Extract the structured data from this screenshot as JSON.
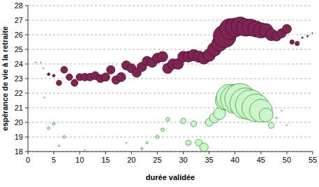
{
  "chart_data": {
    "type": "scatter",
    "x_label": "durée validée",
    "y_label": "espérance de vie à la retraite",
    "xlim": [
      0,
      55
    ],
    "ylim": [
      18,
      28
    ],
    "xticks": [
      0,
      5,
      10,
      15,
      20,
      25,
      30,
      35,
      40,
      45,
      50,
      55
    ],
    "yticks": [
      18,
      19,
      20,
      21,
      22,
      23,
      24,
      25,
      26,
      27,
      28
    ],
    "grid": true,
    "marker": "bubble",
    "series": [
      {
        "color": "#7e2553",
        "x": [
          4,
          5,
          6,
          7,
          8,
          9,
          10,
          11,
          12,
          13,
          14,
          15,
          16,
          17,
          18,
          19,
          20,
          21,
          22,
          23,
          24,
          25,
          26,
          27,
          28,
          29,
          30,
          31,
          32,
          33,
          34,
          35,
          36,
          37,
          38,
          39,
          40,
          41,
          42,
          43,
          44,
          45,
          46,
          47,
          48,
          49,
          50,
          51,
          52,
          53,
          54,
          55
        ],
        "values": [
          23.3,
          23.2,
          22.7,
          23.6,
          23.1,
          22.7,
          23.1,
          23.1,
          23.1,
          23.2,
          23,
          23.1,
          23.6,
          22.9,
          23.1,
          23.9,
          23.7,
          23.4,
          23.8,
          24.2,
          24.1,
          24.4,
          24.5,
          23.7,
          24,
          24,
          24.5,
          24.5,
          24.6,
          24.5,
          24.4,
          24.6,
          25,
          25.4,
          25.9,
          26.4,
          26.5,
          26.6,
          26.5,
          26.5,
          26.4,
          26.3,
          26.3,
          26,
          25.9,
          26.1,
          26.4,
          25.5,
          25.4,
          25.8,
          25.9,
          26.1
        ],
        "size": [
          0.3,
          0.3,
          1.2,
          2,
          1.8,
          2,
          2.2,
          2.5,
          2.5,
          2.8,
          2.8,
          3,
          3,
          3,
          3.5,
          3.5,
          3.5,
          3.5,
          3.8,
          3.8,
          4,
          4.2,
          4.5,
          4.5,
          4.5,
          4.8,
          5,
          5,
          5.5,
          5.5,
          6,
          6.5,
          8,
          10,
          22,
          18,
          15,
          14,
          13,
          12,
          11,
          10,
          8,
          6,
          4,
          3.5,
          3.5,
          0.8,
          0.8,
          0.1,
          0.1,
          0.1
        ]
      },
      {
        "color": "#ccf5cc",
        "x": [
          1.5,
          2.5,
          3,
          3.2,
          4,
          5,
          6,
          7,
          9,
          11,
          19,
          22,
          23,
          25,
          26,
          27,
          30,
          31,
          32,
          33,
          34,
          35,
          36,
          37,
          38,
          39,
          40,
          41,
          42,
          43,
          44,
          45,
          46,
          47,
          48,
          49,
          50
        ],
        "values": [
          24.1,
          24.1,
          23.7,
          21.7,
          19.6,
          19.9,
          18.4,
          19,
          18,
          18.1,
          18.6,
          18.2,
          18.6,
          19,
          19.5,
          20.2,
          20.1,
          18.6,
          19.9,
          18.6,
          18.3,
          20,
          20.3,
          20.6,
          21.5,
          21.7,
          21.6,
          21.6,
          21.3,
          21.2,
          21,
          20.8,
          20.5,
          19.8,
          20.3,
          20.8,
          19.8
        ],
        "size": [
          0.05,
          0.05,
          0.05,
          0.05,
          0.3,
          0.3,
          0.1,
          0.3,
          0.05,
          0.05,
          0.05,
          0.2,
          0.2,
          0.4,
          0.5,
          0.6,
          1.2,
          1.2,
          1.5,
          2,
          3,
          2.5,
          4,
          6,
          15,
          30,
          35,
          40,
          40,
          38,
          32,
          22,
          8,
          1.5,
          0.1,
          0.05,
          0.05
        ]
      }
    ]
  }
}
